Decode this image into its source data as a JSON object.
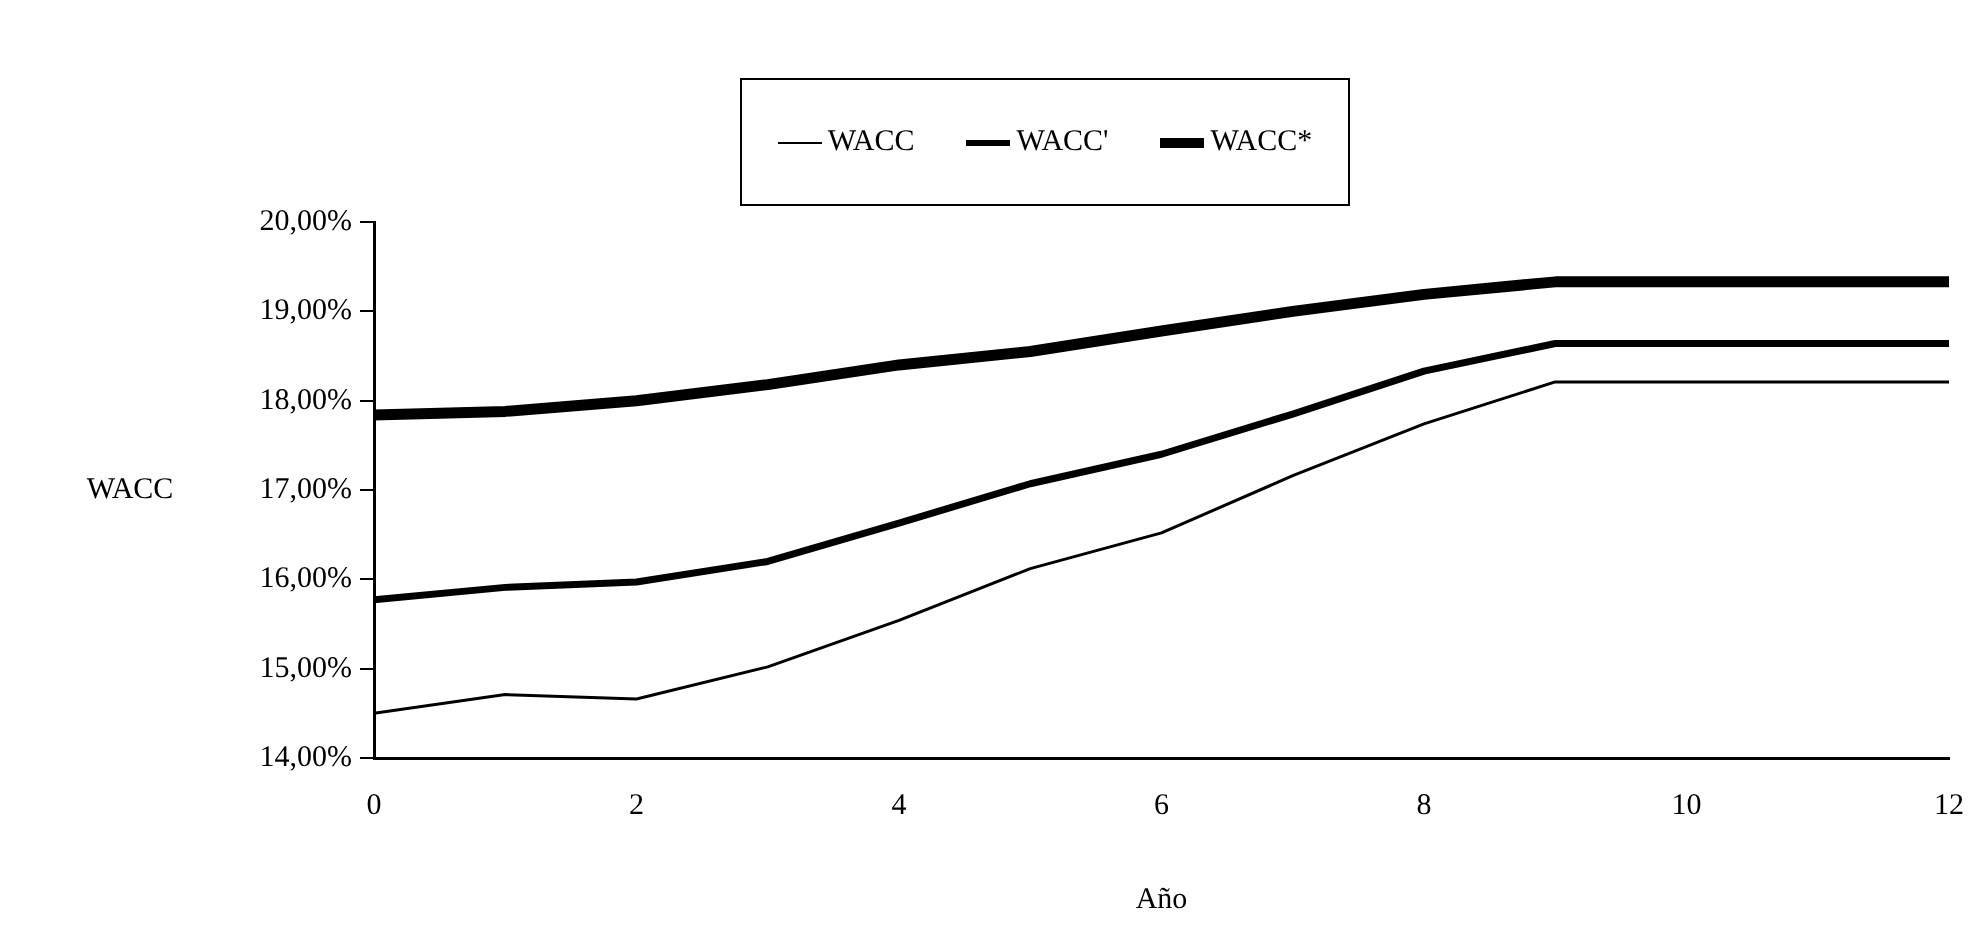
{
  "chart_data": {
    "type": "line",
    "xlabel": "Año",
    "ylabel": "WACC",
    "x": [
      0,
      1,
      2,
      3,
      4,
      5,
      6,
      7,
      8,
      9,
      10,
      11,
      12
    ],
    "series": [
      {
        "name": "WACC",
        "color": "#000000",
        "values": [
          14.5,
          14.71,
          14.66,
          15.02,
          15.54,
          16.12,
          16.52,
          17.16,
          17.74,
          18.21,
          18.21,
          18.21,
          18.21
        ]
      },
      {
        "name": "WACC'",
        "color": "#000000",
        "values": [
          15.77,
          15.91,
          15.97,
          16.2,
          16.63,
          17.07,
          17.4,
          17.85,
          18.33,
          18.64,
          18.64,
          18.64,
          18.64
        ]
      },
      {
        "name": "WACC*",
        "color": "#000000",
        "values": [
          17.84,
          17.88,
          18.0,
          18.18,
          18.4,
          18.55,
          18.78,
          19.0,
          19.19,
          19.33,
          19.33,
          19.33,
          19.33
        ]
      }
    ],
    "xlim": [
      0,
      12
    ],
    "xticks": [
      0,
      2,
      4,
      6,
      8,
      10,
      12
    ],
    "ylim": [
      14,
      20
    ],
    "yticks": [
      {
        "value": 14,
        "label": "14,00%"
      },
      {
        "value": 15,
        "label": "15,00%"
      },
      {
        "value": 16,
        "label": "16,00%"
      },
      {
        "value": 17,
        "label": "17,00%"
      },
      {
        "value": 18,
        "label": "18,00%"
      },
      {
        "value": 19,
        "label": "19,00%"
      },
      {
        "value": 20,
        "label": "20,00%"
      }
    ],
    "grid": false,
    "legend": "top",
    "marker": "none",
    "line_style": "solid"
  }
}
